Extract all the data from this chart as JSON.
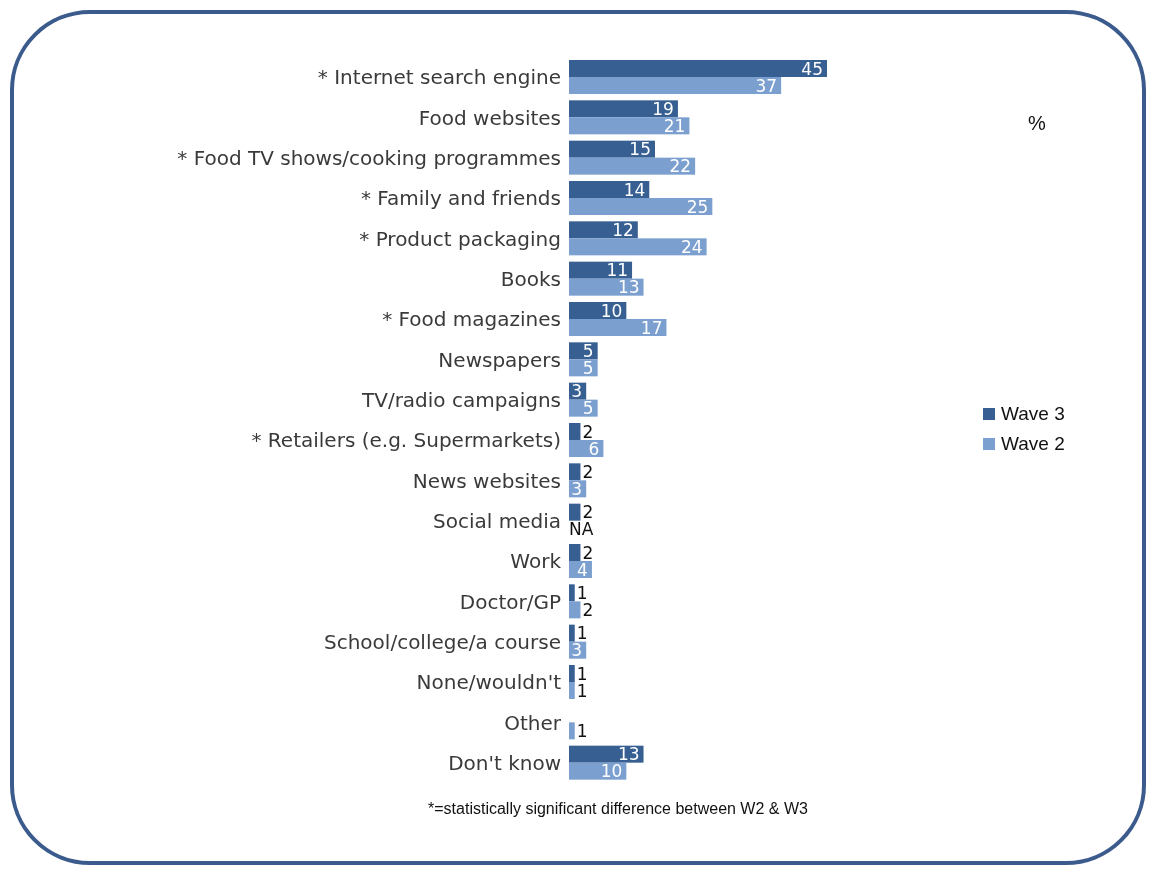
{
  "chart_data": {
    "type": "bar",
    "orientation": "horizontal",
    "categories": [
      "* Internet search engine",
      "Food websites",
      "* Food TV shows/cooking programmes",
      "* Family and friends",
      "* Product packaging",
      "Books",
      "* Food magazines",
      "Newspapers",
      "TV/radio campaigns",
      "* Retailers (e.g. Supermarkets)",
      "News websites",
      "Social media",
      "Work",
      "Doctor/GP",
      "School/college/a course",
      "None/wouldn't",
      "Other",
      "Don't know"
    ],
    "series": [
      {
        "name": "Wave 3",
        "color": "#375f92",
        "values": [
          45,
          19,
          15,
          14,
          12,
          11,
          10,
          5,
          3,
          2,
          2,
          2,
          2,
          1,
          1,
          1,
          null,
          13
        ],
        "value_labels": [
          "45",
          "19",
          "15",
          "14",
          "12",
          "11",
          "10",
          "5",
          "3",
          "2",
          "2",
          "2",
          "2",
          "1",
          "1",
          "1",
          null,
          "13"
        ]
      },
      {
        "name": "Wave 2",
        "color": "#7b9fcf",
        "values": [
          37,
          21,
          22,
          25,
          24,
          13,
          17,
          5,
          5,
          6,
          3,
          null,
          4,
          2,
          3,
          1,
          1,
          10
        ],
        "value_labels": [
          "37",
          "21",
          "22",
          "25",
          "24",
          "13",
          "17",
          "5",
          "5",
          "6",
          "3",
          "NA",
          "4",
          "2",
          "3",
          "1",
          "1",
          "10"
        ]
      }
    ],
    "legend": "right",
    "annotations": [
      "%",
      "*=statistically significant difference between W2 & W3"
    ]
  }
}
